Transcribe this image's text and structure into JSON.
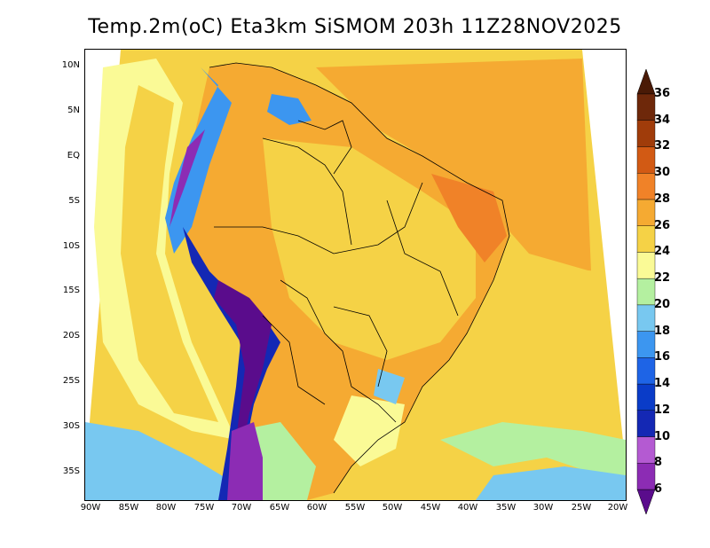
{
  "title": "Temp.2m(oC) Eta3km SiSMOM 203h 11Z28NOV2025",
  "lat_labels": [
    "10N",
    "5N",
    "EQ",
    "5S",
    "10S",
    "15S",
    "20S",
    "25S",
    "30S",
    "35S"
  ],
  "lon_labels": [
    "90W",
    "85W",
    "80W",
    "75W",
    "70W",
    "65W",
    "60W",
    "55W",
    "50W",
    "45W",
    "40W",
    "35W",
    "30W",
    "25W",
    "20W"
  ],
  "colorbar": {
    "unit": "oC",
    "levels": [
      "6",
      "8",
      "10",
      "12",
      "14",
      "16",
      "18",
      "20",
      "22",
      "24",
      "26",
      "28",
      "30",
      "32",
      "34",
      "36"
    ],
    "colors": [
      "#5a0c8c",
      "#8c2cb4",
      "#b45ad2",
      "#1428b4",
      "#0a3cc8",
      "#1e64e6",
      "#3c96f0",
      "#78c8f0",
      "#b4f0a0",
      "#fafa96",
      "#f5d246",
      "#f5aa32",
      "#f08228",
      "#d25a14",
      "#a03c0a",
      "#6e280a",
      "#4a1a06"
    ]
  }
}
